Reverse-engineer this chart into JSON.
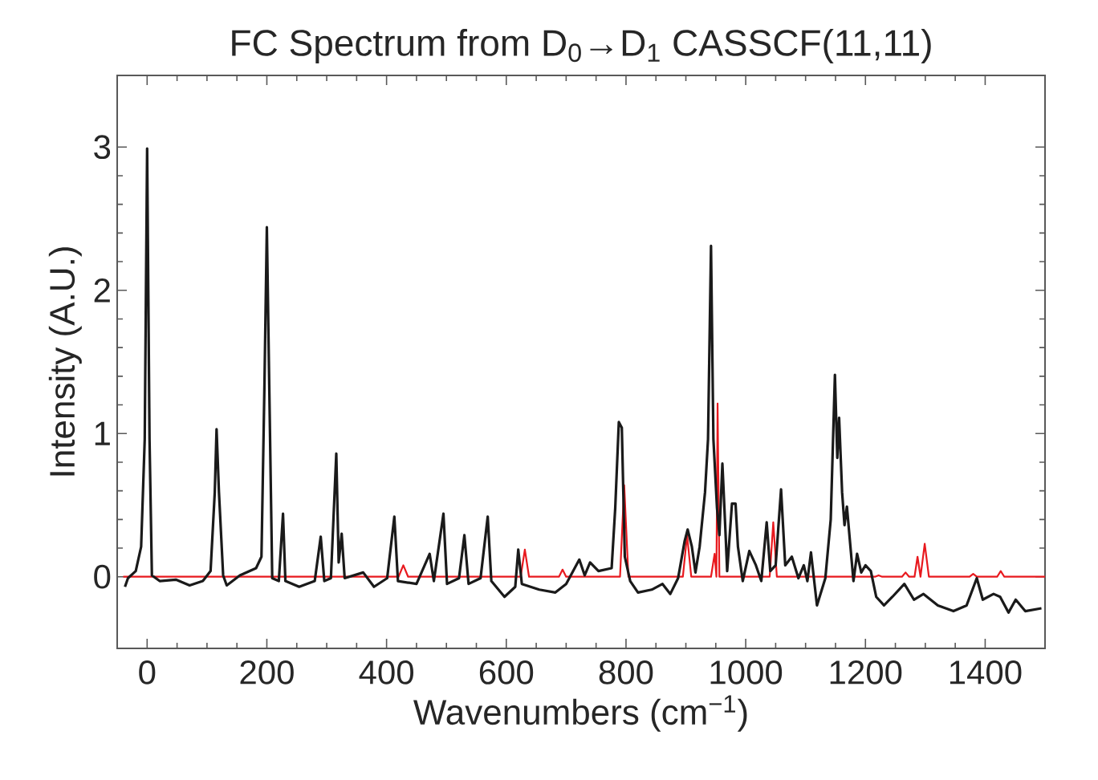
{
  "chart_data": {
    "type": "line",
    "title": "FC Spectrum from D$_{0}$→D$_{1}$ CASSCF(11,11)",
    "xlabel": "Wavenumbers (cm$^{−1}$)",
    "ylabel": "Intensity (A.U.)",
    "xlim": [
      -50,
      1500
    ],
    "ylim": [
      -0.5,
      3.5
    ],
    "xticks": [
      0,
      200,
      400,
      600,
      800,
      1000,
      1200,
      1400
    ],
    "yticks": [
      0,
      1,
      2,
      3
    ],
    "grid": false,
    "marker": "none",
    "line_style": "solid",
    "series": [
      {
        "color": "#e8191e",
        "x": [
          -40,
          -6,
          0,
          6,
          420,
          428,
          436,
          624,
          631,
          638,
          688,
          694,
          700,
          790,
          797,
          804,
          895,
          902,
          909,
          942,
          948,
          951,
          953,
          956,
          961,
          1040,
          1046,
          1052,
          1216,
          1222,
          1228,
          1261,
          1267,
          1273,
          1282,
          1287,
          1292,
          1299,
          1306,
          1374,
          1380,
          1386,
          1420,
          1426,
          1432,
          1500
        ],
        "values": [
          0,
          0,
          null,
          0,
          0,
          0.08,
          0,
          0,
          0.19,
          0,
          0,
          0.05,
          0,
          0,
          0.64,
          0,
          0,
          0.29,
          0,
          0,
          0.16,
          0,
          1.21,
          0,
          0,
          0,
          0.38,
          0,
          0,
          0.01,
          0,
          0,
          0.03,
          0,
          0,
          0.14,
          0,
          0.23,
          0,
          0,
          0.02,
          0,
          0,
          0.04,
          0,
          0
        ]
      },
      {
        "color": "#1a1a1a",
        "x": [
          -37,
          -32,
          -19,
          -10,
          -4,
          0,
          4,
          8,
          21,
          48,
          71,
          93,
          106,
          113,
          116,
          120,
          127,
          133,
          155,
          182,
          191,
          196,
          200,
          204,
          209,
          220,
          227,
          231,
          254,
          280,
          290,
          296,
          307,
          316,
          320,
          325,
          330,
          361,
          379,
          401,
          413,
          419,
          450,
          472,
          479,
          495,
          501,
          521,
          530,
          537,
          557,
          569,
          575,
          597,
          615,
          620,
          626,
          655,
          682,
          700,
          722,
          731,
          740,
          754,
          776,
          782,
          788,
          793,
          798,
          807,
          820,
          843,
          861,
          874,
          887,
          898,
          903,
          910,
          916,
          923,
          932,
          937,
          942,
          946,
          952,
          956,
          961,
          966,
          969,
          977,
          983,
          987,
          995,
          1006,
          1017,
          1026,
          1035,
          1041,
          1050,
          1059,
          1066,
          1077,
          1088,
          1097,
          1103,
          1109,
          1119,
          1133,
          1142,
          1149,
          1153,
          1156,
          1161,
          1165,
          1169,
          1180,
          1186,
          1193,
          1200,
          1209,
          1218,
          1231,
          1245,
          1265,
          1281,
          1297,
          1321,
          1347,
          1369,
          1386,
          1396,
          1414,
          1425,
          1439,
          1451,
          1467,
          1494
        ],
        "values": [
          -0.07,
          -0.01,
          0.04,
          0.21,
          0.96,
          2.99,
          0.96,
          0.01,
          -0.03,
          -0.02,
          -0.06,
          -0.03,
          0.04,
          0.59,
          1.03,
          0.59,
          0.01,
          -0.06,
          0.01,
          0.06,
          0.14,
          1.34,
          2.44,
          1.34,
          -0.01,
          -0.03,
          0.44,
          -0.03,
          -0.07,
          -0.03,
          0.28,
          -0.03,
          -0.01,
          0.86,
          0.1,
          0.3,
          -0.01,
          0.03,
          -0.07,
          -0.01,
          0.42,
          -0.03,
          -0.05,
          0.16,
          -0.03,
          0.44,
          -0.05,
          -0.01,
          0.29,
          -0.05,
          -0.01,
          0.42,
          -0.03,
          -0.14,
          -0.07,
          0.19,
          -0.05,
          -0.09,
          -0.11,
          -0.05,
          0.12,
          0.01,
          0.1,
          0.04,
          0.06,
          0.48,
          1.08,
          1.04,
          0.14,
          -0.03,
          -0.11,
          -0.09,
          -0.05,
          -0.12,
          -0.01,
          0.25,
          0.33,
          0.21,
          0.03,
          0.21,
          0.59,
          0.96,
          2.31,
          0.96,
          0.48,
          0.29,
          0.79,
          0.33,
          0.04,
          0.51,
          0.51,
          0.21,
          -0.03,
          0.18,
          0.08,
          -0.03,
          0.38,
          0.04,
          0.08,
          0.61,
          0.08,
          0.14,
          -0.01,
          0.08,
          -0.03,
          0.17,
          -0.2,
          -0.01,
          0.4,
          1.41,
          0.83,
          1.11,
          0.59,
          0.36,
          0.49,
          -0.03,
          0.16,
          0.03,
          0.08,
          0.04,
          -0.14,
          -0.2,
          -0.14,
          -0.05,
          -0.16,
          -0.12,
          -0.2,
          -0.24,
          -0.2,
          -0.01,
          -0.16,
          -0.12,
          -0.14,
          -0.25,
          -0.16,
          -0.24,
          -0.22
        ]
      }
    ]
  }
}
